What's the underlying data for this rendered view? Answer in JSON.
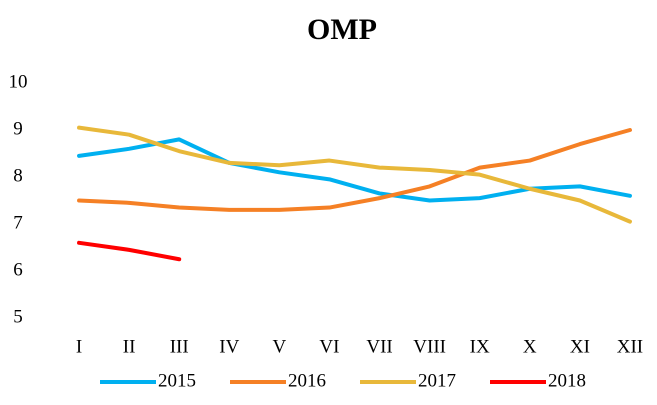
{
  "chart_data": {
    "type": "line",
    "title": "OMP",
    "categories": [
      "I",
      "II",
      "III",
      "IV",
      "V",
      "VI",
      "VII",
      "VIII",
      "IX",
      "X",
      "XI",
      "XII"
    ],
    "series": [
      {
        "name": "2015",
        "color": "#00b0f0",
        "values": [
          8.45,
          8.6,
          8.8,
          8.3,
          8.1,
          7.95,
          7.65,
          7.5,
          7.55,
          7.75,
          7.8,
          7.6
        ]
      },
      {
        "name": "2016",
        "color": "#f58025",
        "values": [
          7.5,
          7.45,
          7.35,
          7.3,
          7.3,
          7.35,
          7.55,
          7.8,
          8.2,
          8.35,
          8.7,
          9.0
        ]
      },
      {
        "name": "2017",
        "color": "#e8b83a",
        "values": [
          9.05,
          8.9,
          8.55,
          8.3,
          8.25,
          8.35,
          8.2,
          8.15,
          8.05,
          7.75,
          7.5,
          7.05
        ]
      },
      {
        "name": "2018",
        "color": "#ff0000",
        "values": [
          6.6,
          6.45,
          6.25,
          null,
          null,
          null,
          null,
          null,
          null,
          null,
          null,
          null
        ]
      }
    ],
    "ylim": [
      5,
      10
    ],
    "yticks": [
      5,
      6,
      7,
      8,
      9,
      10
    ],
    "grid": false,
    "legend": "bottom"
  }
}
